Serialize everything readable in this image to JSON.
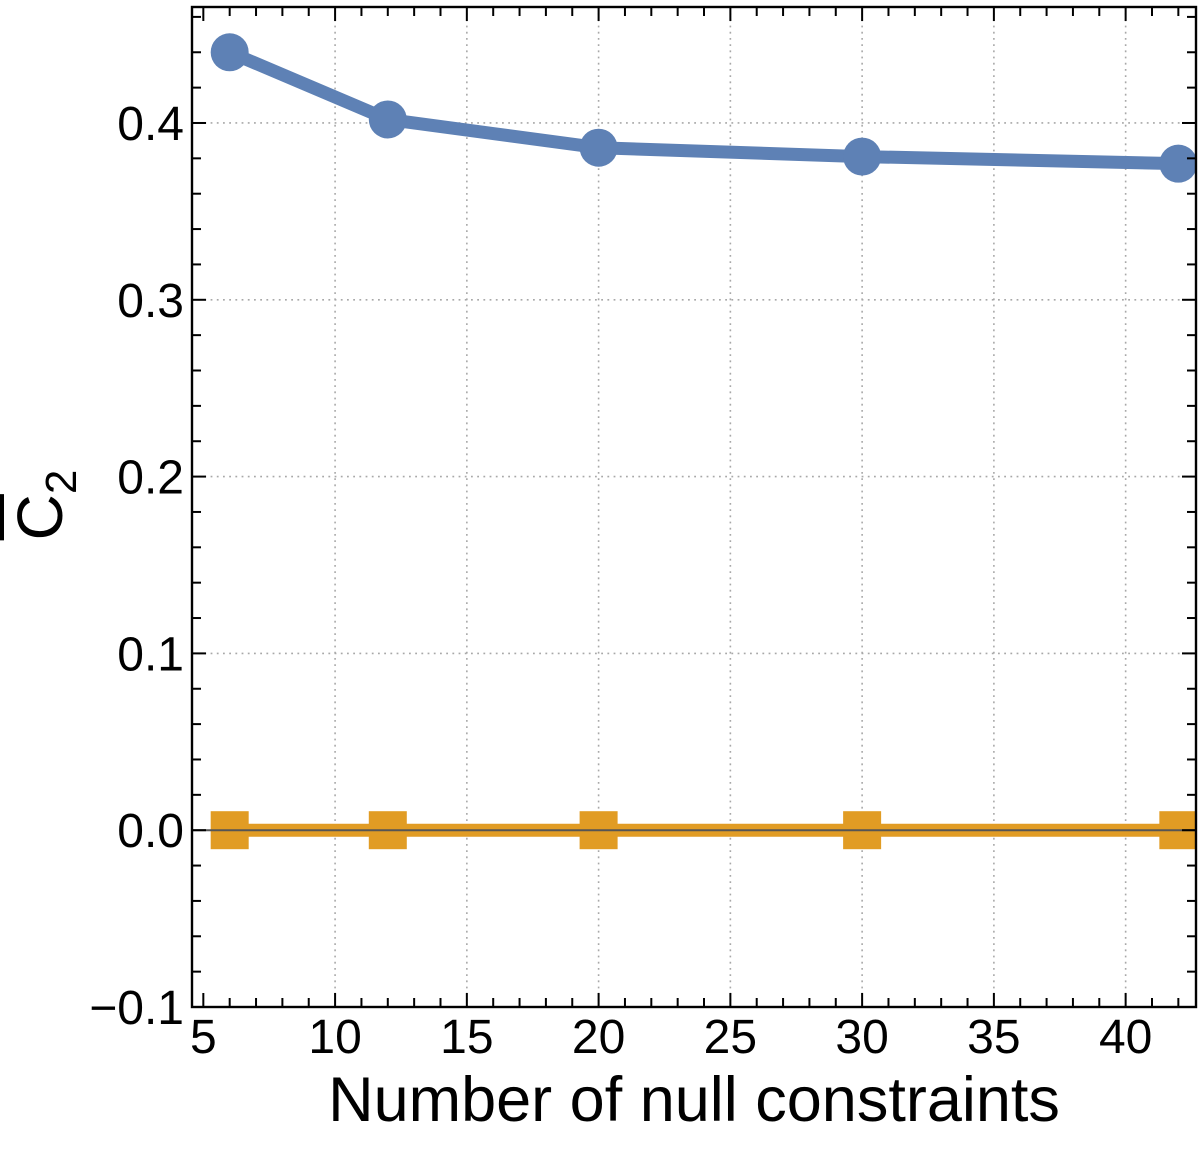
{
  "figure": {
    "background": "#ffffff"
  },
  "chart_data": {
    "type": "line",
    "title": "",
    "xlabel": "Number of null constraints",
    "ylabel": {
      "base": "C",
      "overbar": true,
      "subscript": "2"
    },
    "xlim": [
      4.57,
      42.67
    ],
    "ylim": [
      -0.1,
      0.4656
    ],
    "x_ticks": {
      "major": [
        5,
        10,
        15,
        20,
        25,
        30,
        35,
        40
      ],
      "labels": [
        "5",
        "10",
        "15",
        "20",
        "25",
        "30",
        "35",
        "40"
      ],
      "minor_step": 1,
      "minor_range": [
        5,
        42
      ]
    },
    "y_ticks": {
      "major": [
        -0.1,
        0.0,
        0.1,
        0.2,
        0.3,
        0.4
      ],
      "labels": [
        "−0.1",
        "0.0",
        "0.1",
        "0.2",
        "0.3",
        "0.4"
      ],
      "minor_step": 0.02,
      "minor_range": [
        -0.1,
        0.46
      ]
    },
    "gridlines": {
      "x": [
        10,
        15,
        20,
        25,
        30,
        35,
        40
      ],
      "y": [
        0.0,
        0.1,
        0.2,
        0.3,
        0.4
      ],
      "color": "#a8a8a8",
      "style": "dotted"
    },
    "axis_line": {
      "y": 0,
      "color": "#555555"
    },
    "frame_color": "#000000",
    "series": [
      {
        "name": "blue-circle-series",
        "color": "#5e81b5",
        "marker": "circle",
        "marker_radius": 19,
        "line_width": 13,
        "points": [
          [
            6,
            0.44
          ],
          [
            12,
            0.402
          ],
          [
            20,
            0.386
          ],
          [
            30,
            0.381
          ],
          [
            42,
            0.377
          ]
        ]
      },
      {
        "name": "orange-square-series",
        "color": "#e19c24",
        "marker": "square",
        "marker_radius": 19,
        "line_width": 13,
        "points": [
          [
            6,
            0.0
          ],
          [
            12,
            0.0
          ],
          [
            20,
            0.0
          ],
          [
            30,
            0.0
          ],
          [
            42,
            0.0
          ]
        ]
      }
    ]
  }
}
